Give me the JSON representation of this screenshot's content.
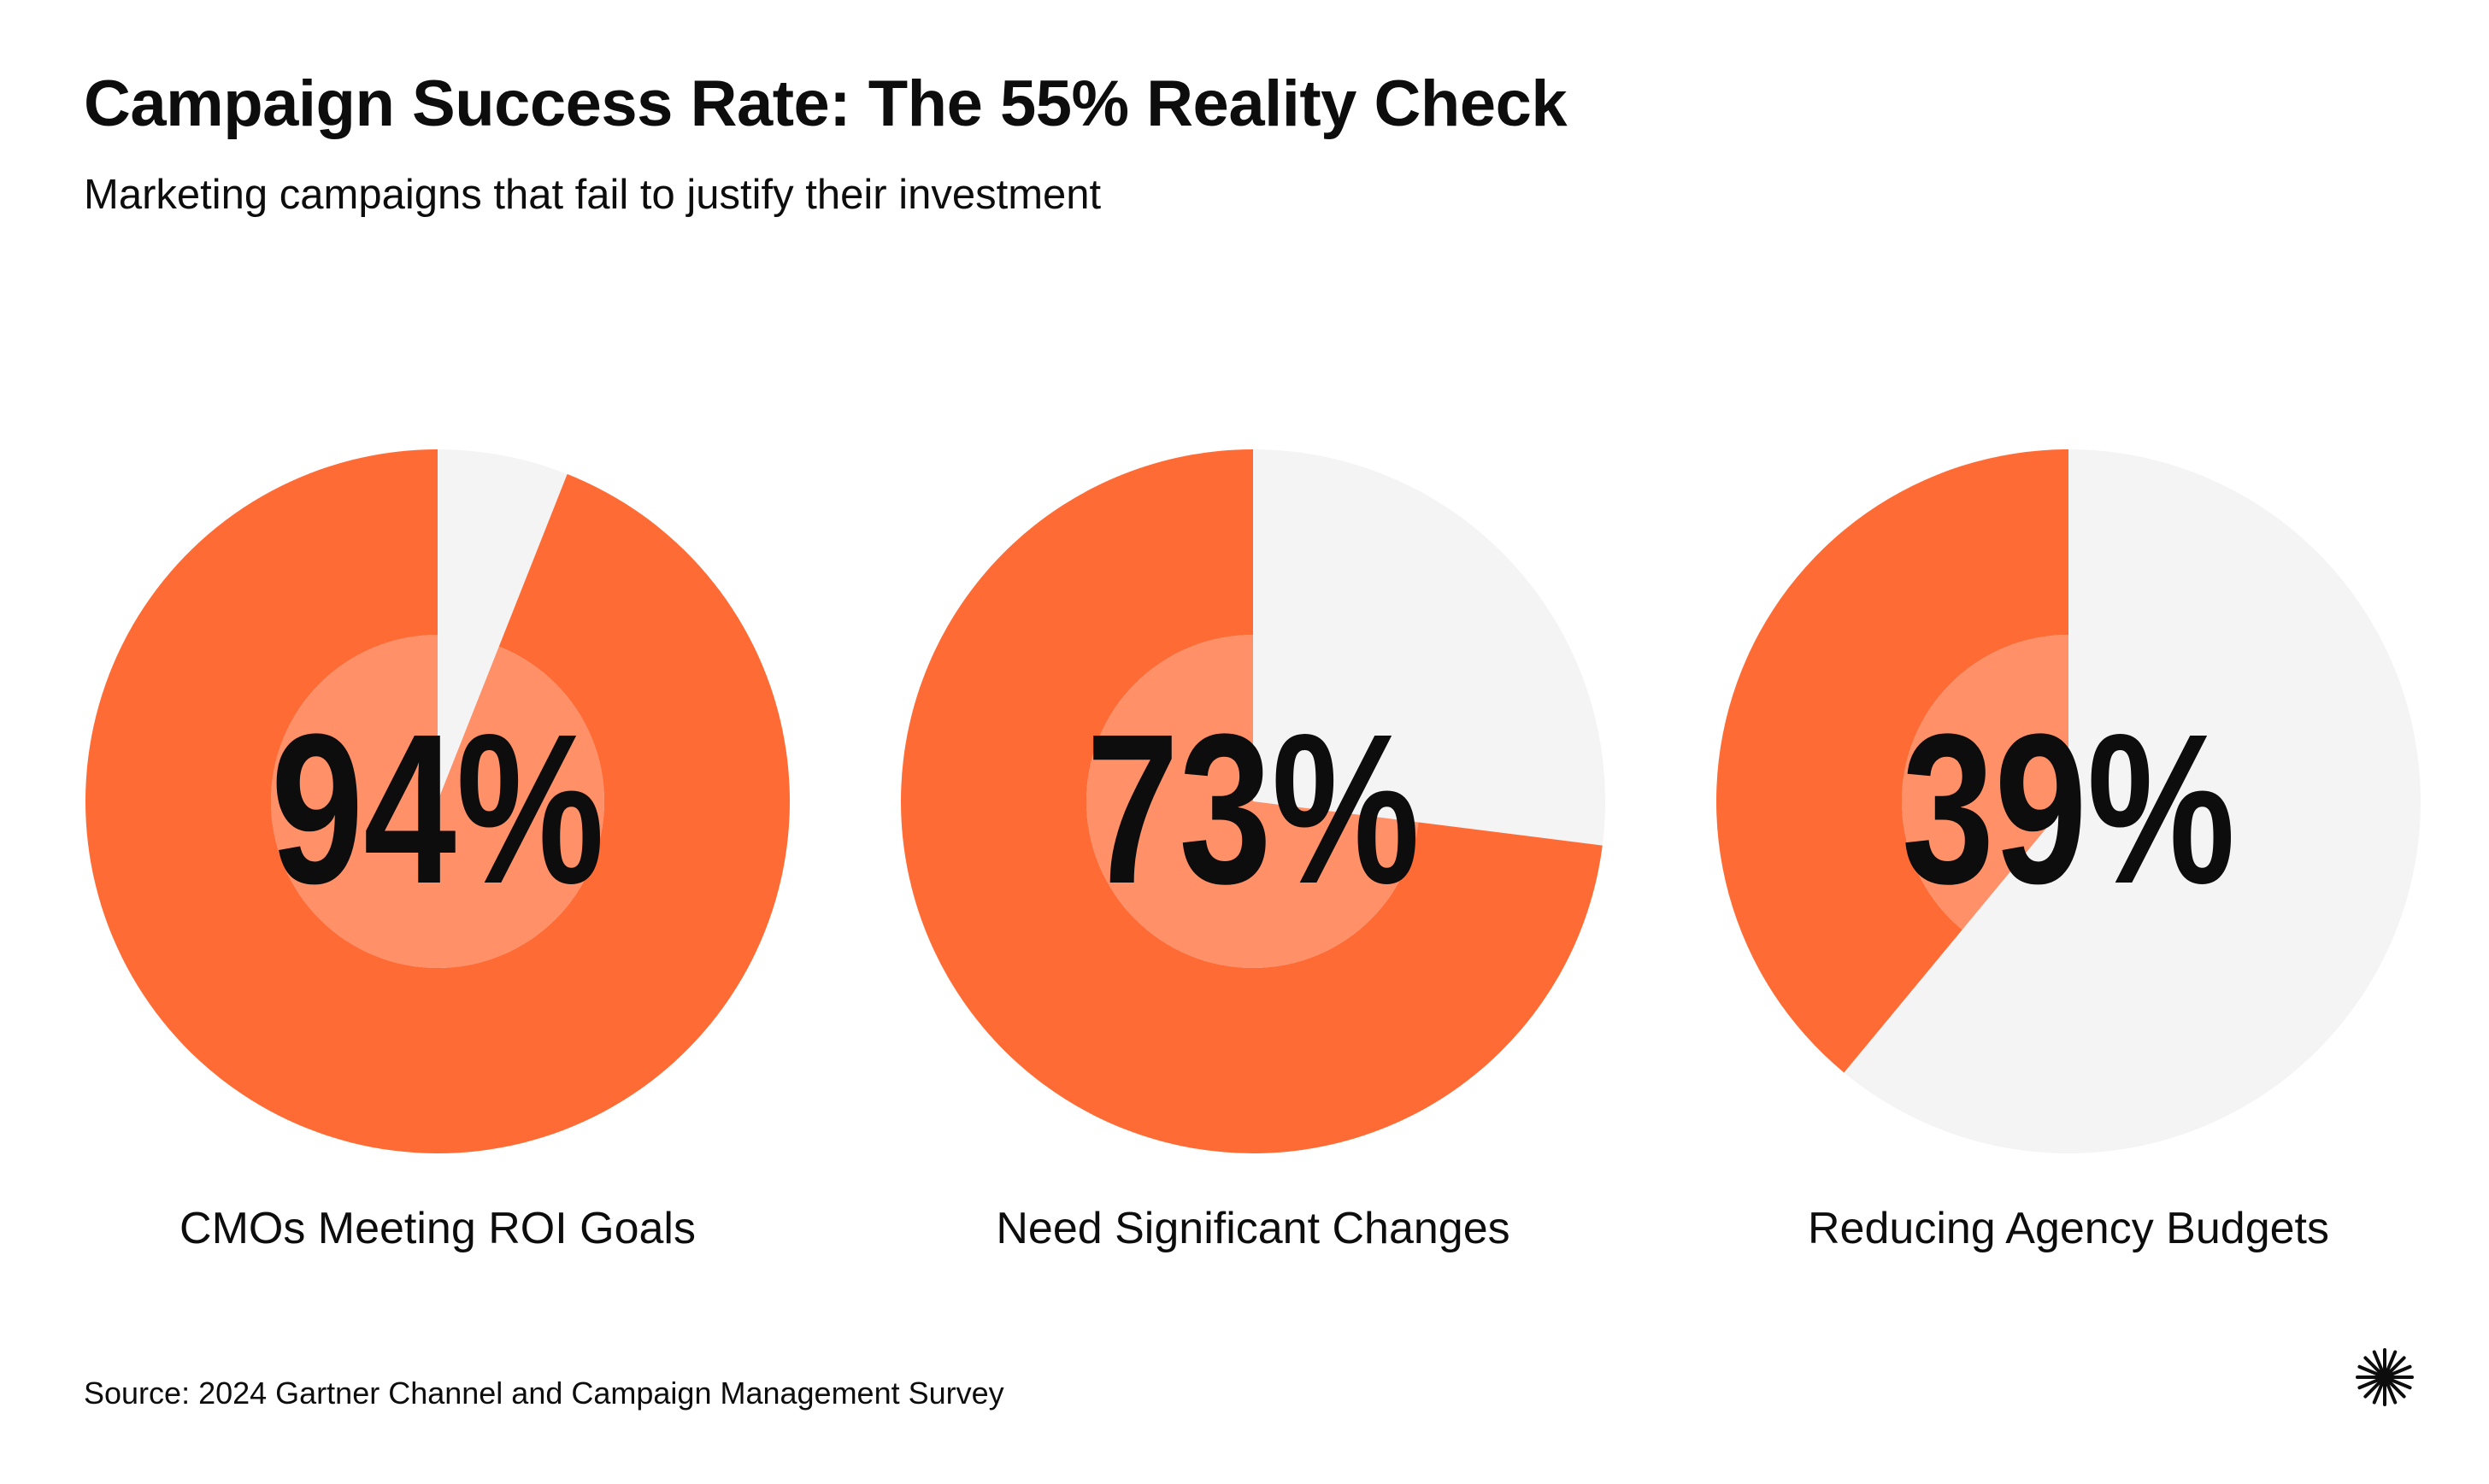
{
  "header": {
    "title": "Campaign Success Rate: The 55% Reality Check",
    "subtitle": "Marketing campaigns that fail to justify their investment"
  },
  "chart_data": {
    "type": "pie",
    "title": "Campaign Success Rate: The 55% Reality Check",
    "subtitle": "Marketing campaigns that fail to justify their investment",
    "unit": "%",
    "max": 100,
    "items": [
      {
        "label": "CMOs Meeting ROI Goals",
        "value": 94,
        "display": "94%"
      },
      {
        "label": "Need Significant Changes",
        "value": 73,
        "display": "73%"
      },
      {
        "label": "Reducing Agency Budgets",
        "value": 39,
        "display": "39%"
      }
    ]
  },
  "colors": {
    "accent": "#FF6B35",
    "inner": "#FF9068",
    "remainder": "#F4F4F4",
    "text": "#0D0D0D"
  },
  "footer": {
    "source": "Source: 2024 Gartner Channel and Campaign Management Survey"
  },
  "icons": {
    "logo": "sunburst-logo-icon"
  }
}
